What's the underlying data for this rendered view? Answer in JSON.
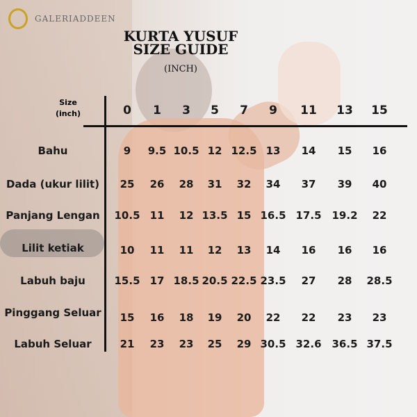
{
  "brand": {
    "name": "GALERIADDEEN"
  },
  "title": {
    "line1": "KURTA YUSUF",
    "line2": "SIZE GUIDE",
    "unit": "(INCH)"
  },
  "table": {
    "corner": {
      "line1": "Size",
      "line2": "(inch)"
    },
    "sizes": [
      "0",
      "1",
      "3",
      "5",
      "7",
      "9",
      "11",
      "13",
      "15"
    ],
    "rows": [
      {
        "label": "Bahu",
        "values": [
          "9",
          "9.5",
          "10.5",
          "12",
          "12.5",
          "13",
          "14",
          "15",
          "16"
        ]
      },
      {
        "label": "Dada (ukur lilit)",
        "values": [
          "25",
          "26",
          "28",
          "31",
          "32",
          "34",
          "37",
          "39",
          "40"
        ]
      },
      {
        "label": "Panjang Lengan",
        "values": [
          "10.5",
          "11",
          "12",
          "13.5",
          "15",
          "16.5",
          "17.5",
          "19.2",
          "22"
        ]
      },
      {
        "label": "Lilit ketiak",
        "values": [
          "10",
          "11",
          "11",
          "12",
          "13",
          "14",
          "16",
          "16",
          "16"
        ]
      },
      {
        "label": "Labuh baju",
        "values": [
          "15.5",
          "17",
          "18.5",
          "20.5",
          "22.5",
          "23.5",
          "27",
          "28",
          "28.5"
        ]
      },
      {
        "label": "Pinggang Seluar",
        "values": [
          "15",
          "16",
          "18",
          "19",
          "20",
          "22",
          "22",
          "23",
          "23"
        ]
      },
      {
        "label": "Labuh Seluar",
        "values": [
          "21",
          "23",
          "23",
          "25",
          "29",
          "30.5",
          "32.6",
          "36.5",
          "37.5"
        ]
      }
    ]
  }
}
